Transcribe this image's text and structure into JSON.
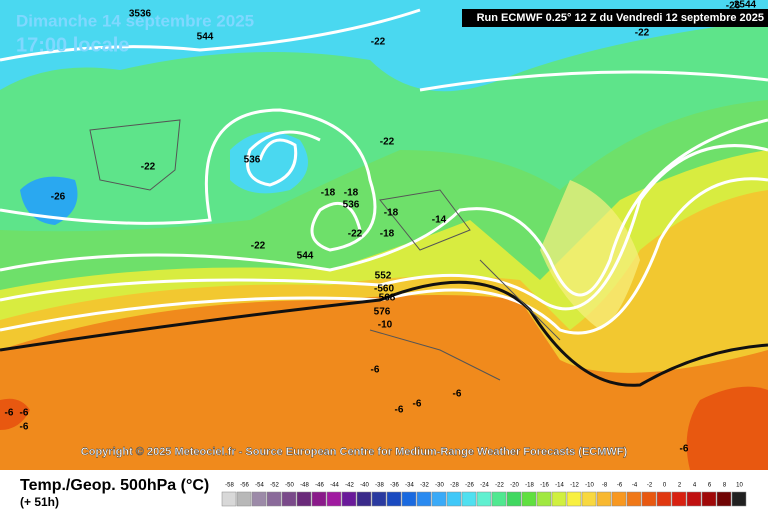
{
  "header": {
    "date": "Dimanche 14 septembre 2025",
    "time": "17:00 locale",
    "run": "Run ECMWF 0.25° 12 Z du Vendredi 12 septembre 2025"
  },
  "map_labels": [
    "3536",
    "-26",
    "544",
    "-22",
    "2544",
    "-22",
    "-22",
    "-22",
    "536",
    "-26",
    "-18",
    "-18",
    "536",
    "-18",
    "-22",
    "-18",
    "-22",
    "544",
    "-14",
    "552",
    "-560",
    "568",
    "576",
    "-10",
    "-6",
    "-6",
    "-6",
    "-6",
    "-6",
    "-6",
    "-6",
    "-6"
  ],
  "copyright": "Copyright © 2025 Meteociel.fr - Source European Centre for Medium-Range Weather Forecasts (ECMWF)",
  "footer": {
    "title": "Temp./Geop. 500hPa (°C)",
    "subtitle": "(+ 51h)"
  },
  "legend": {
    "labels": [
      -58,
      -56,
      -54,
      -52,
      -50,
      -48,
      -46,
      -44,
      -42,
      -40,
      -38,
      -36,
      -34,
      -32,
      -30,
      -28,
      -26,
      -24,
      -22,
      -20,
      -18,
      -16,
      -14,
      -12,
      -10,
      -8,
      -6,
      -4,
      -2,
      0,
      2,
      4,
      6,
      8,
      10
    ],
    "colors": [
      "#d8d8d8",
      "#b8b8b8",
      "#9c8aa8",
      "#8a6a9a",
      "#7a4a8a",
      "#6a2a7a",
      "#8a1a8a",
      "#a01aa0",
      "#6a1a9a",
      "#3a2a8a",
      "#2a3aa0",
      "#1a4ac0",
      "#1a6ae0",
      "#2a8af0",
      "#3aaaf8",
      "#40c8f8",
      "#50e0f0",
      "#60f0d0",
      "#50e890",
      "#40d860",
      "#60e040",
      "#a0e840",
      "#d0f040",
      "#f8f040",
      "#f8d840",
      "#f8b830",
      "#f89820",
      "#f07818",
      "#e85810",
      "#e03810",
      "#d82010",
      "#c01010",
      "#a00808",
      "#700404",
      "#202020"
    ]
  }
}
